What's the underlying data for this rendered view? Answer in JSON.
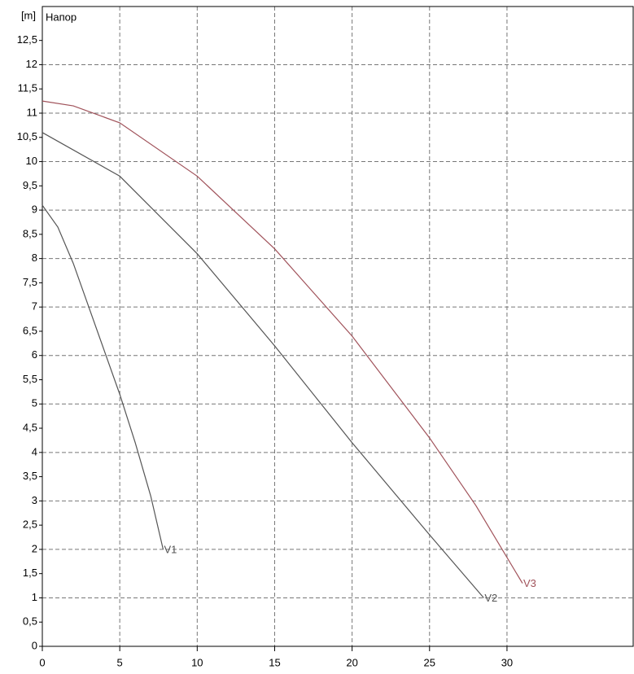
{
  "chart_data": {
    "type": "line",
    "title": "Напор",
    "y_label": "[m]",
    "xlim": [
      0,
      38.2
    ],
    "ylim": [
      0,
      13.2
    ],
    "xticks": [
      0,
      5,
      10,
      15,
      20,
      25,
      30
    ],
    "yticks": [
      0,
      {
        "value": 0.5,
        "label": "0,5"
      },
      1,
      {
        "value": 1.5,
        "label": "1,5"
      },
      2,
      {
        "value": 2.5,
        "label": "2,5"
      },
      3,
      {
        "value": 3.5,
        "label": "3,5"
      },
      4,
      {
        "value": 4.5,
        "label": "4,5"
      },
      5,
      {
        "value": 5.5,
        "label": "5,5"
      },
      6,
      {
        "value": 6.5,
        "label": "6,5"
      },
      7,
      {
        "value": 7.5,
        "label": "7,5"
      },
      8,
      {
        "value": 8.5,
        "label": "8,5"
      },
      9,
      {
        "value": 9.5,
        "label": "9,5"
      },
      10,
      {
        "value": 10.5,
        "label": "10,5"
      },
      11,
      {
        "value": 11.5,
        "label": "11,5"
      },
      12,
      {
        "value": 12.5,
        "label": "12,5"
      }
    ],
    "grid": true,
    "series": [
      {
        "name": "V1",
        "color": "#555555",
        "x": [
          0,
          1,
          2,
          3,
          4,
          5,
          6,
          7,
          7.8
        ],
        "values": [
          9.1,
          8.65,
          7.9,
          7.0,
          6.1,
          5.2,
          4.2,
          3.1,
          2.0
        ]
      },
      {
        "name": "V2",
        "color": "#555555",
        "x": [
          0,
          5,
          10,
          15,
          20,
          25,
          28.5
        ],
        "values": [
          10.6,
          9.7,
          8.1,
          6.2,
          4.2,
          2.3,
          1.0
        ]
      },
      {
        "name": "V3",
        "color": "#a0525a",
        "x": [
          0,
          2,
          5,
          10,
          15,
          20,
          25,
          28,
          31
        ],
        "values": [
          11.25,
          11.15,
          10.8,
          9.7,
          8.2,
          6.4,
          4.3,
          2.9,
          1.3
        ]
      }
    ]
  }
}
